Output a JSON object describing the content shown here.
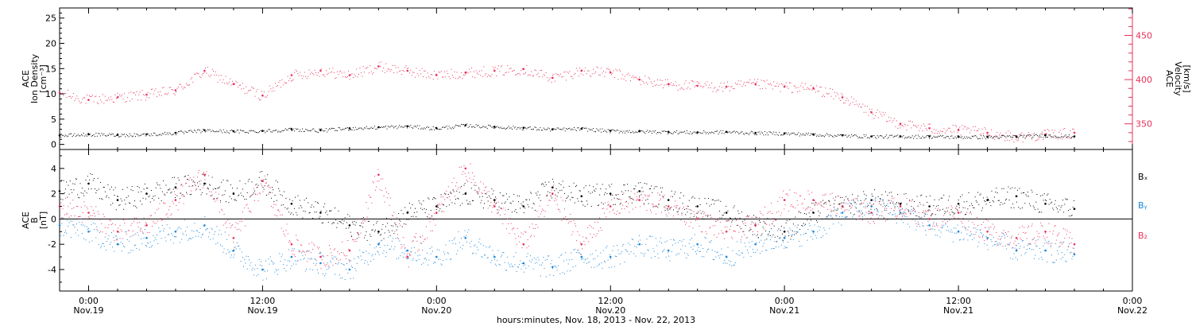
{
  "colors": {
    "black": "#000000",
    "red": "#e8305a",
    "blue": "#1a86d8"
  },
  "chart_data": [
    {
      "type": "scatter",
      "panel": "top",
      "x_unit": "hours since 00:00 Nov.19, 2013",
      "xlim": [
        -2,
        72
      ],
      "left_axis": {
        "label_lines": [
          "ACE",
          "Ion Density",
          "[cm⁻³]"
        ],
        "ylim": [
          -1,
          27
        ],
        "ticks": [
          0,
          5,
          10,
          15,
          20,
          25
        ],
        "tick_labels": [
          "0",
          "5",
          "10",
          "15",
          "20",
          "25"
        ]
      },
      "right_axis": {
        "label_lines": [
          "ACE",
          "Velocity",
          "[km/s]"
        ],
        "ylim": [
          321,
          481
        ],
        "ticks": [
          350,
          400,
          450
        ],
        "tick_labels": [
          "350",
          "400",
          "450"
        ]
      },
      "series": [
        {
          "axis": "left",
          "color": "#000000",
          "x": [
            -2,
            0,
            2,
            4,
            6,
            8,
            10,
            12,
            14,
            16,
            18,
            20,
            22,
            24,
            26,
            28,
            30,
            32,
            34,
            36,
            38,
            40,
            42,
            44,
            46,
            48,
            50,
            52,
            54,
            56,
            58,
            60,
            62,
            64,
            66,
            68
          ],
          "y": [
            1.8,
            2.0,
            1.9,
            2.0,
            2.3,
            2.8,
            2.6,
            2.7,
            3.0,
            2.8,
            3.2,
            3.4,
            3.6,
            3.2,
            3.8,
            3.5,
            3.3,
            3.0,
            3.1,
            2.7,
            2.6,
            2.5,
            2.4,
            2.5,
            2.3,
            2.2,
            2.0,
            1.8,
            1.6,
            1.6,
            1.6,
            1.5,
            1.5,
            1.6,
            1.8,
            1.6
          ]
        },
        {
          "axis": "right",
          "color": "#e8305a",
          "x": [
            -2,
            0,
            2,
            4,
            6,
            8,
            10,
            12,
            14,
            16,
            18,
            20,
            22,
            24,
            26,
            28,
            30,
            32,
            34,
            36,
            38,
            40,
            42,
            44,
            46,
            48,
            50,
            52,
            54,
            56,
            58,
            60,
            62,
            64,
            66,
            68
          ],
          "y": [
            385,
            377,
            380,
            383,
            388,
            410,
            395,
            382,
            405,
            410,
            405,
            415,
            410,
            405,
            408,
            410,
            412,
            402,
            410,
            408,
            400,
            395,
            393,
            392,
            395,
            392,
            390,
            380,
            363,
            350,
            345,
            343,
            340,
            335,
            338,
            340
          ]
        }
      ]
    },
    {
      "type": "scatter",
      "panel": "bottom",
      "x_unit": "hours since 00:00 Nov.19, 2013",
      "xlim": [
        -2,
        72
      ],
      "ylabel_lines": [
        "ACE",
        "B",
        "[nT]"
      ],
      "ylim": [
        -5.7,
        5.5
      ],
      "ticks": [
        -4,
        -2,
        0,
        2,
        4
      ],
      "tick_labels": [
        "-4",
        "-2",
        "0",
        "2",
        "4"
      ],
      "legend": [
        "Bₓ",
        "Bᵧ",
        "B₂"
      ],
      "legend_placement": "right",
      "series": [
        {
          "name": "Bx",
          "color": "#000000",
          "x": [
            -2,
            0,
            2,
            4,
            6,
            8,
            10,
            12,
            14,
            16,
            18,
            20,
            22,
            24,
            26,
            28,
            30,
            32,
            34,
            36,
            38,
            40,
            42,
            44,
            46,
            48,
            50,
            52,
            54,
            56,
            58,
            60,
            62,
            64,
            66,
            68
          ],
          "y": [
            2.2,
            2.8,
            1.5,
            2.0,
            2.5,
            2.8,
            2.0,
            3.0,
            1.2,
            0.5,
            -0.5,
            -1.0,
            0.5,
            1.0,
            2.0,
            1.5,
            1.0,
            2.5,
            1.8,
            2.0,
            2.2,
            1.5,
            1.0,
            0.5,
            -0.5,
            -1.0,
            0.5,
            1.0,
            1.5,
            1.2,
            1.0,
            1.2,
            1.5,
            1.8,
            1.2,
            0.8
          ]
        },
        {
          "name": "By",
          "color": "#1a86d8",
          "x": [
            -2,
            0,
            2,
            4,
            6,
            8,
            10,
            12,
            14,
            16,
            18,
            20,
            22,
            24,
            26,
            28,
            30,
            32,
            34,
            36,
            38,
            40,
            42,
            44,
            46,
            48,
            50,
            52,
            54,
            56,
            58,
            60,
            62,
            64,
            66,
            68
          ],
          "y": [
            -0.5,
            -1.0,
            -2.0,
            -1.5,
            -1.0,
            -0.5,
            -2.5,
            -4.0,
            -3.0,
            -3.5,
            -4.0,
            -2.0,
            -2.5,
            -3.0,
            -1.5,
            -3.0,
            -3.5,
            -3.8,
            -3.0,
            -3.0,
            -2.0,
            -2.5,
            -2.0,
            -3.0,
            -2.0,
            -1.5,
            -1.0,
            0.5,
            1.0,
            0.5,
            -0.5,
            -1.0,
            -1.5,
            -2.5,
            -2.5,
            -2.8
          ]
        },
        {
          "name": "Bz",
          "color": "#e8305a",
          "x": [
            -2,
            0,
            2,
            4,
            6,
            8,
            10,
            12,
            14,
            16,
            18,
            20,
            22,
            24,
            26,
            28,
            30,
            32,
            34,
            36,
            38,
            40,
            42,
            44,
            46,
            48,
            50,
            52,
            54,
            56,
            58,
            60,
            62,
            64,
            66,
            68
          ],
          "y": [
            1.0,
            0.5,
            -1.0,
            -0.5,
            1.5,
            3.5,
            -1.5,
            3.0,
            -2.0,
            -3.0,
            -2.5,
            3.5,
            -3.0,
            0.5,
            4.0,
            1.0,
            -2.0,
            2.0,
            -2.0,
            1.0,
            1.5,
            1.0,
            0.0,
            -1.0,
            -0.5,
            1.5,
            1.5,
            1.0,
            0.5,
            1.0,
            0.0,
            0.5,
            -1.0,
            -1.5,
            -1.0,
            -2.0
          ]
        }
      ]
    }
  ],
  "x_axis": {
    "ticks": [
      0,
      12,
      24,
      36,
      48,
      60,
      72
    ],
    "time_labels": [
      "0:00",
      "12:00",
      "0:00",
      "12:00",
      "0:00",
      "12:00",
      "0:00"
    ],
    "date_labels": [
      "Nov.19",
      "Nov.19",
      "Nov.20",
      "Nov.20",
      "Nov.21",
      "Nov.21",
      "Nov.22"
    ],
    "xlabel": "hours:minutes, Nov. 18, 2013 - Nov. 22, 2013"
  }
}
